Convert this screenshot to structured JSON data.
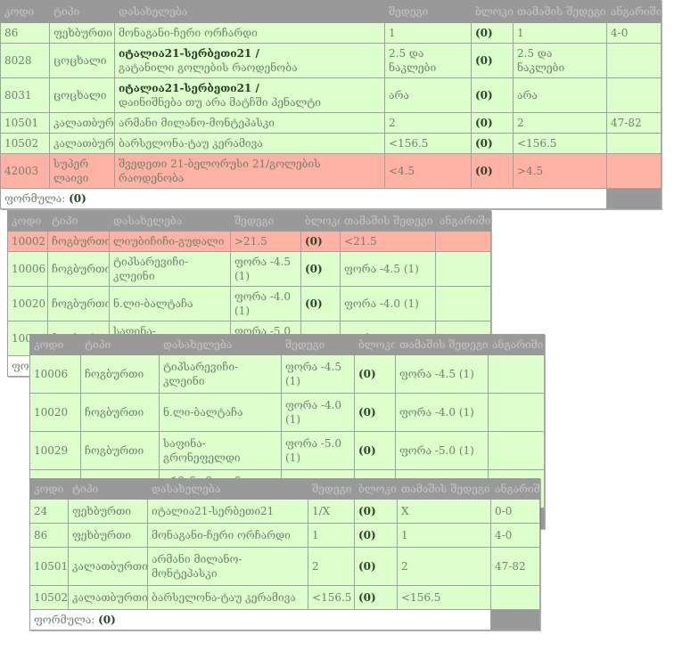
{
  "columns": [
    "კოდი",
    "ტიპი",
    "დასახელება",
    "შედეგი",
    "ბლოკი",
    "თამაშის შედეგი",
    "ანგარიში"
  ],
  "footer": {
    "label": "ფორმულა:",
    "value": "(0)"
  },
  "colors": {
    "won_row": "#ddffcc",
    "lost_row": "#ffb1a3",
    "header_bg": "#999999",
    "text": "#6d836d"
  },
  "tables": [
    {
      "rows": [
        {
          "status": "green",
          "code": "86",
          "type": "ფეხბურთი",
          "name": "მონაგანი-ჩერი ორჩარდი",
          "result": "1",
          "block": "(0)",
          "game_result": "1",
          "score": "4-0"
        },
        {
          "status": "green",
          "code": "8028",
          "type": "ცოცხალი",
          "name_bold": "იტალია21-სერბეთი21 /",
          "name": "გატანილი გოლების რაოდენობა",
          "result": "2.5 და ნაკლები",
          "block": "(0)",
          "game_result": "2.5 და ნაკლები",
          "score": ""
        },
        {
          "status": "green",
          "code": "8031",
          "type": "ცოცხალი",
          "name_bold": "იტალია21-სერბეთი21 /",
          "name": "დაინიშნება თუ არა მატჩში პენალტი",
          "result": "არა",
          "block": "(0)",
          "game_result": "არა",
          "score": ""
        },
        {
          "status": "green",
          "code": "10501",
          "type": "კალათბურთი",
          "name": "არმანი მილანო-მონტეპასკი",
          "result": "2",
          "block": "(0)",
          "game_result": "2",
          "score": "47-82"
        },
        {
          "status": "green",
          "code": "10502",
          "type": "კალათბურთი",
          "name": "ბარსელონა-ტაუ კერამივა",
          "result": "<156.5",
          "block": "(0)",
          "game_result": "<156.5",
          "score": ""
        },
        {
          "status": "red",
          "code": "42003",
          "type": "სუპერ ლაივი",
          "name": "შვედეთი 21-ბელორუსი 21/გოლების რაოდენობა",
          "result": "<4.5",
          "block": "(0)",
          "game_result": ">4.5",
          "score": ""
        }
      ]
    },
    {
      "rows": [
        {
          "status": "red",
          "code": "10002",
          "type": "ჩოგბურთი",
          "name": "ლიუბიჩიჩი-გუდალი",
          "result": ">21.5",
          "block": "(0)",
          "game_result": "<21.5",
          "score": ""
        },
        {
          "status": "green",
          "code": "10006",
          "type": "ჩოგბურთი",
          "name": "ტიპსარევიჩი-კლეინი",
          "result": "ფორა -4.5 (1)",
          "block": "(0)",
          "game_result": "ფორა -4.5 (1)",
          "score": ""
        },
        {
          "status": "green",
          "code": "10020",
          "type": "ჩოგბურთი",
          "name": "ნ.ლი-ბალტაჩა",
          "result": "ფორა -4.0 (1)",
          "block": "(0)",
          "game_result": "ფორა -4.0 (1)",
          "score": ""
        },
        {
          "status": "green",
          "code": "10029",
          "type": "ჩოგბურთი",
          "name": "საფინა-გრონეფელდი",
          "result": "ფორა -5.0 (1)",
          "block": "(0)",
          "game_result": "ფორა -5.0 (1)",
          "score": ""
        }
      ]
    },
    {
      "rows": [
        {
          "status": "green",
          "code": "10006",
          "type": "ჩოგბურთი",
          "name": "ტიპსარევიჩი-კლეინი",
          "result": "ფორა -4.5 (1)",
          "block": "(0)",
          "game_result": "ფორა -4.5 (1)",
          "score": ""
        },
        {
          "status": "green",
          "code": "10020",
          "type": "ჩოგბურთი",
          "name": "ნ.ლი-ბალტაჩა",
          "result": "ფორა -4.0 (1)",
          "block": "(0)",
          "game_result": "ფორა -4.0 (1)",
          "score": ""
        },
        {
          "status": "green",
          "code": "10029",
          "type": "ჩოგბურთი",
          "name": "საფინა-გრონეფელდი",
          "result": "ფორა -5.0 (1)",
          "block": "(0)",
          "game_result": "ფორა -5.0 (1)",
          "score": ""
        },
        {
          "status": "green",
          "code": "10501",
          "type": "კალათბურთი",
          "name": "არმანი მილანო-მონტეპასკი",
          "result": "2",
          "block": "(0)",
          "game_result": "2",
          "score": "47-82"
        }
      ]
    },
    {
      "rows": [
        {
          "status": "green",
          "code": "24",
          "type": "ფეხბურთი",
          "name": "იტალია21-სერბეთი21",
          "result": "1/X",
          "block": "(0)",
          "game_result": "X",
          "score": "0-0"
        },
        {
          "status": "green",
          "code": "86",
          "type": "ფეხბურთი",
          "name": "მონაგანი-ჩერი ორჩარდი",
          "result": "1",
          "block": "(0)",
          "game_result": "1",
          "score": "4-0"
        },
        {
          "status": "green",
          "code": "10501",
          "type": "კალათბურთი",
          "name": "არმანი მილანო-მონტეპასკი",
          "result": "2",
          "block": "(0)",
          "game_result": "2",
          "score": "47-82"
        },
        {
          "status": "green",
          "code": "10502",
          "type": "კალათბურთი",
          "name": "ბარსელონა-ტაუ კერამივა",
          "result": "<156.5",
          "block": "(0)",
          "game_result": "<156.5",
          "score": ""
        }
      ]
    }
  ]
}
